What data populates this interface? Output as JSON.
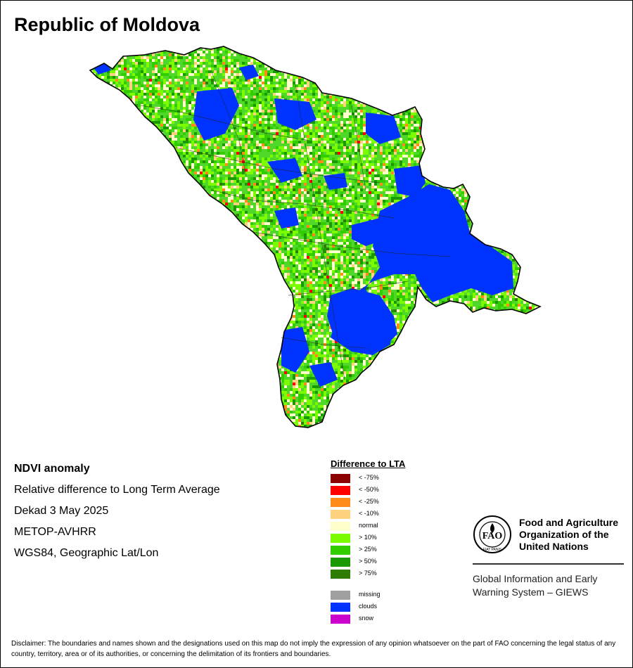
{
  "title": "Republic of Moldova",
  "info": {
    "product": "NDVI anomaly",
    "description": "Relative difference to Long Term Average",
    "period": "Dekad 3 May 2025",
    "sensor": "METOP-AVHRR",
    "projection": "WGS84, Geographic Lat/Lon"
  },
  "legend": {
    "title": "Difference to LTA",
    "classes": [
      {
        "label": "< -75%",
        "color": "#8b0000"
      },
      {
        "label": "< -50%",
        "color": "#ff0000"
      },
      {
        "label": "< -25%",
        "color": "#ff8c1a"
      },
      {
        "label": "< -10%",
        "color": "#ffd27f"
      },
      {
        "label": "normal",
        "color": "#ffffcc"
      },
      {
        "label": "> 10%",
        "color": "#7cfc00"
      },
      {
        "label": "> 25%",
        "color": "#32cd00"
      },
      {
        "label": "> 50%",
        "color": "#1a9900"
      },
      {
        "label": "> 75%",
        "color": "#2e7d00"
      }
    ],
    "other": [
      {
        "label": "missing",
        "color": "#a0a0a0"
      },
      {
        "label": "clouds",
        "color": "#0033ff"
      },
      {
        "label": "snow",
        "color": "#cc00cc"
      }
    ]
  },
  "fao": {
    "name_lines": [
      "Food and Agriculture",
      "Organization of the",
      "United Nations"
    ],
    "logo_text": "FIAT PANIS",
    "giews_lines": [
      "Global Information and Early",
      "Warning System – GIEWS"
    ]
  },
  "disclaimer": "Disclaimer: The boundaries and names shown and the designations used on this map do not imply the expression of any opinion whatsoever on the part of FAO concerning the legal status of any country, territory, area or of its authorities, or concerning the delimitation of its frontiers and boundaries.",
  "colors": {
    "country_base": "#4fd82a",
    "clouds": "#0033ff",
    "border": "#000000"
  }
}
